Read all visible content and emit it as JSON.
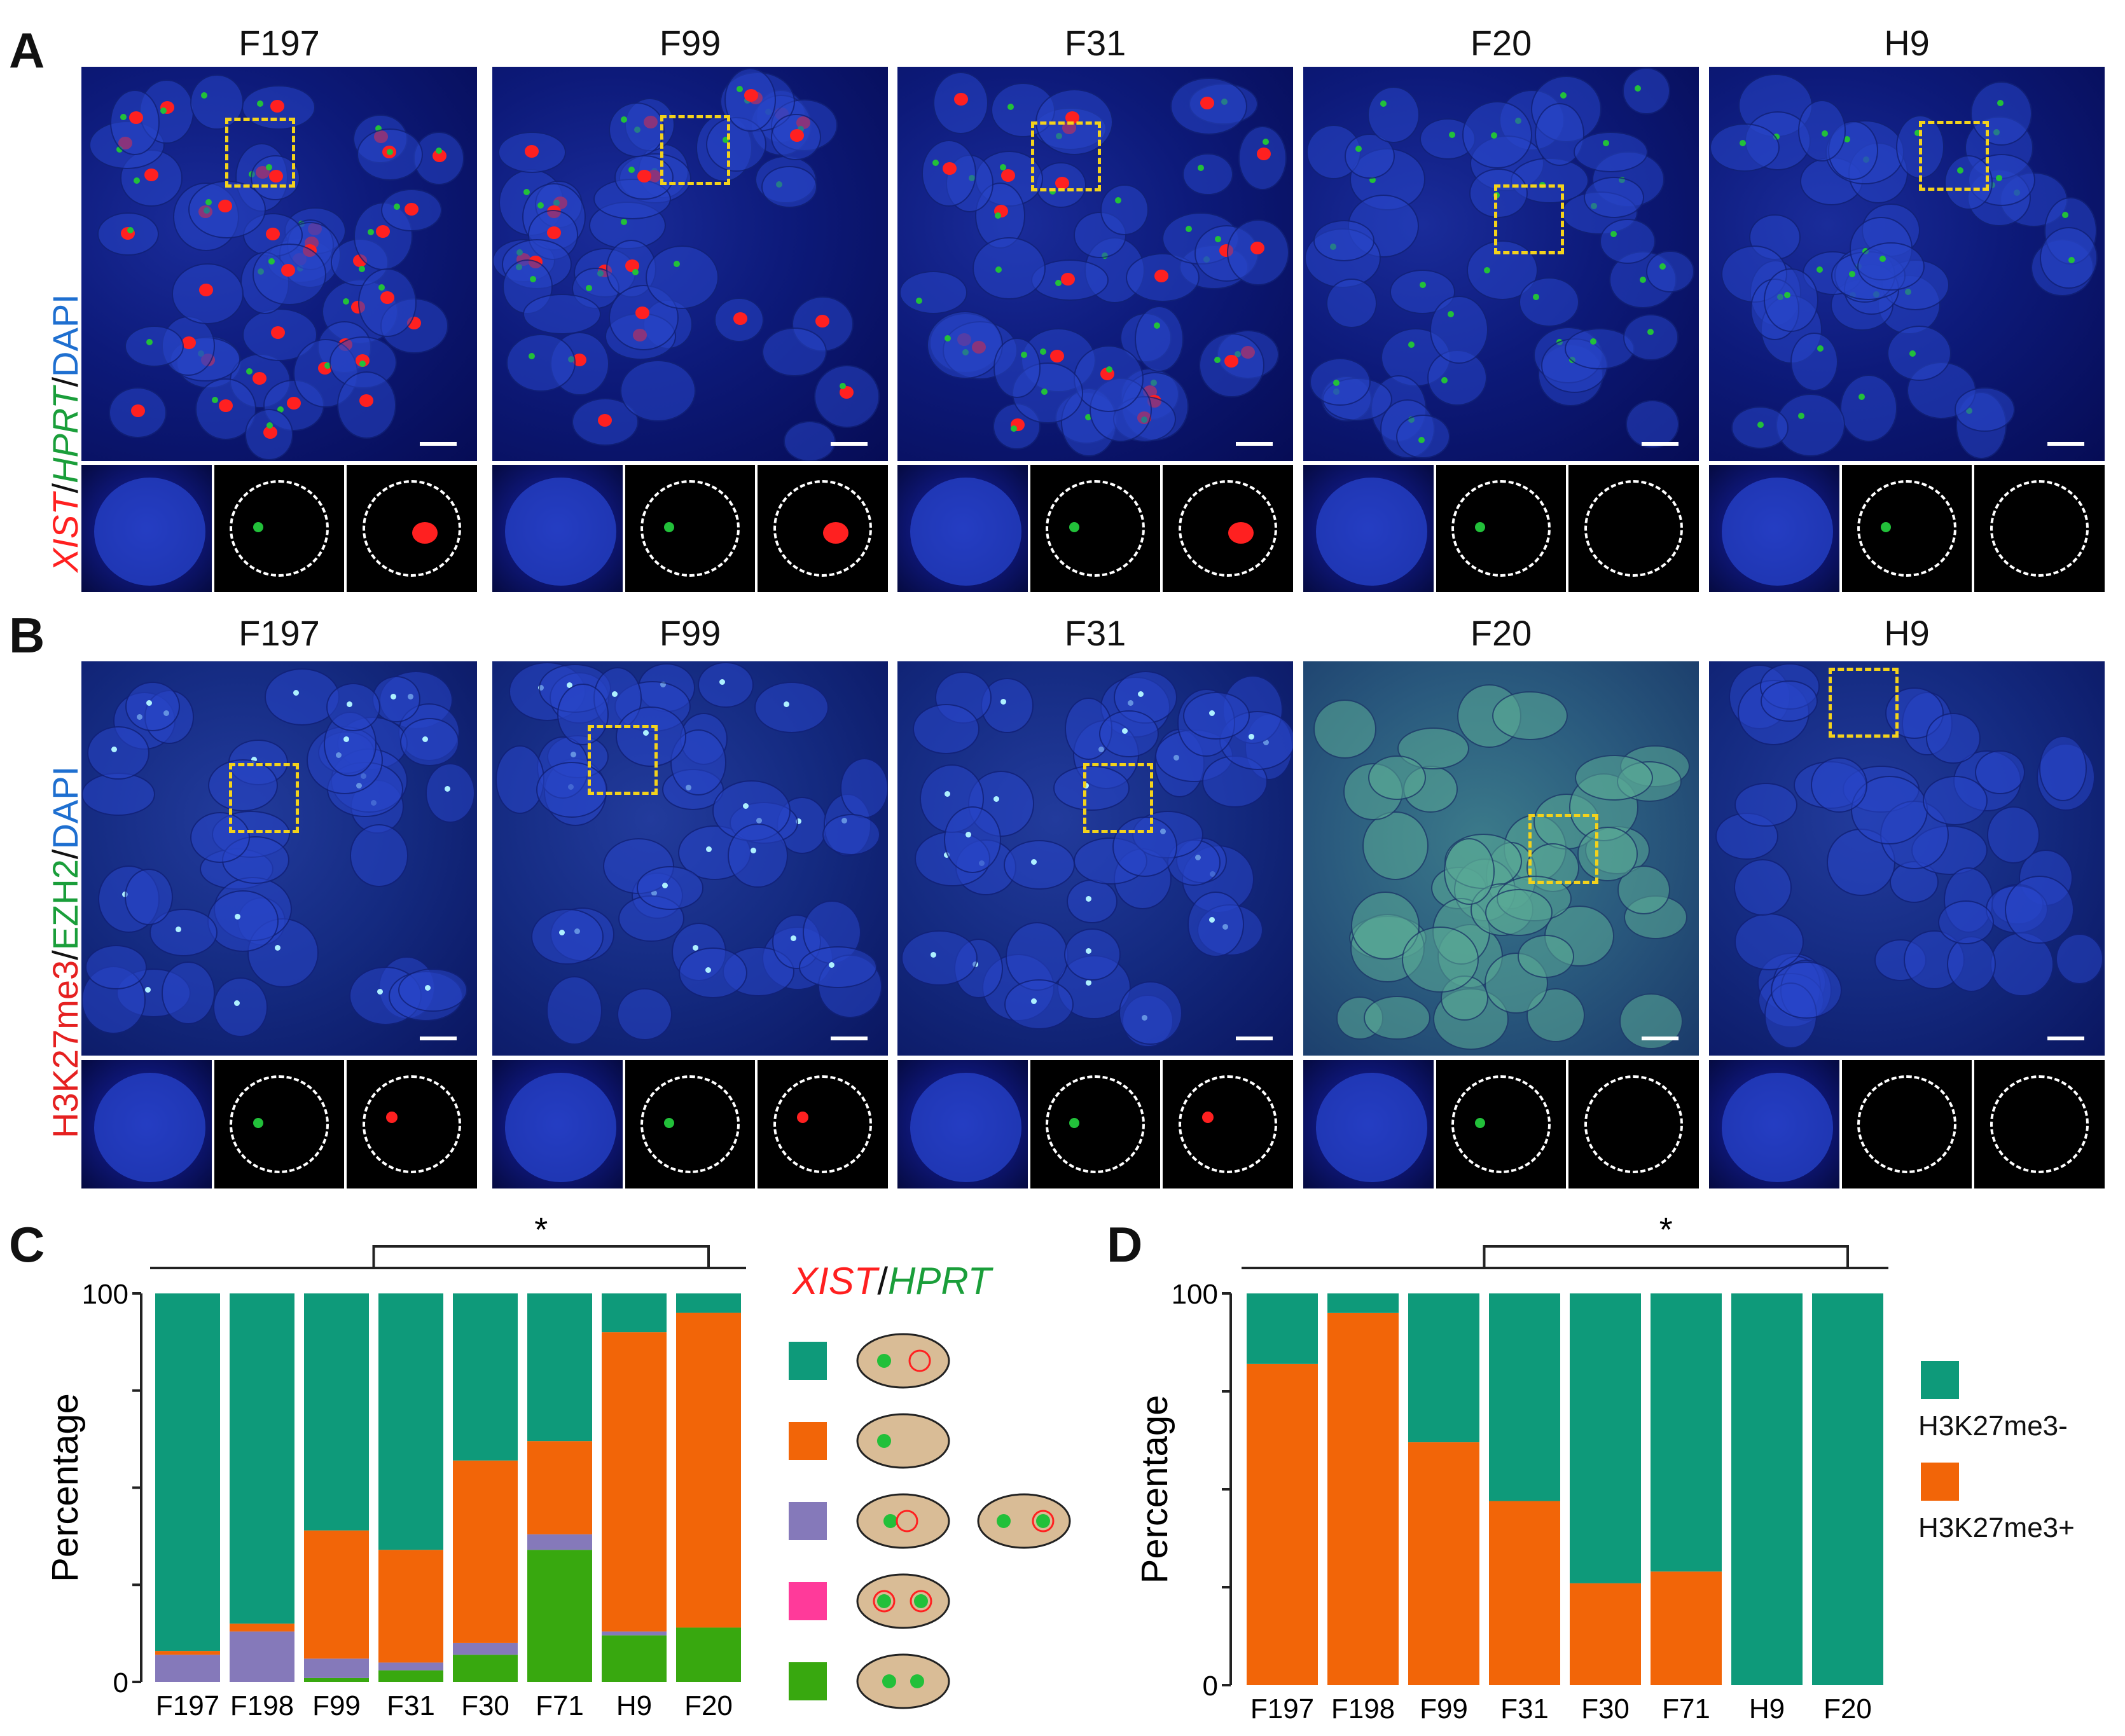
{
  "panels": {
    "a": {
      "letter": "A",
      "stain": {
        "xist": "XIST",
        "sep1": "/",
        "hprt": "HPRT",
        "sep2": "/",
        "dapi": "DAPI"
      },
      "titles": [
        "F197",
        "F99",
        "F31",
        "F20",
        "H9"
      ]
    },
    "b": {
      "letter": "B",
      "stain": {
        "h3k": "H3K27me3",
        "sep1": "/",
        "ezh2": "EZH2",
        "sep2": "/",
        "dapi": "DAPI"
      },
      "titles": [
        "F197",
        "F99",
        "F31",
        "F20",
        "H9"
      ]
    },
    "c": {
      "letter": "C"
    },
    "d": {
      "letter": "D"
    }
  },
  "colors": {
    "teal": "#0e9a7a",
    "orange": "#f26508",
    "purple": "#8579ba",
    "pink": "#ff3a9a",
    "green": "#38a80f",
    "nucleus": "#d9bc96",
    "xist_red": "#ff2020",
    "hprt_green": "#22c03a",
    "dapi_blue": "#1e90ff",
    "roi_yellow": "#f3d21c"
  },
  "chart_data": [
    {
      "id": "C",
      "type": "bar",
      "stacked": true,
      "ylabel": "Percentage",
      "yticks": [
        "0",
        "100"
      ],
      "ylim": [
        0,
        100
      ],
      "categories": [
        "F197",
        "F198",
        "F99",
        "F31",
        "F30",
        "F71",
        "H9",
        "F20"
      ],
      "series": [
        {
          "name": "biallelic HPRT, no XIST",
          "color": "green",
          "values": [
            0,
            0,
            1,
            3,
            7,
            34,
            12,
            14
          ]
        },
        {
          "name": "pink",
          "color": "pink",
          "values": [
            0,
            0,
            0,
            0,
            0,
            0,
            0,
            0
          ]
        },
        {
          "name": "purple",
          "color": "purple",
          "values": [
            7,
            13,
            5,
            2,
            3,
            4,
            1,
            0
          ]
        },
        {
          "name": "orange",
          "color": "orange",
          "values": [
            1,
            2,
            33,
            29,
            47,
            24,
            77,
            81
          ]
        },
        {
          "name": "teal",
          "color": "teal",
          "values": [
            92,
            85,
            61,
            66,
            43,
            38,
            10,
            5
          ]
        }
      ],
      "significance": {
        "label": "*",
        "left_group_end": "F71",
        "right_group_start": "H9"
      },
      "legend_title": {
        "xist": "XIST",
        "sep": "/",
        "hprt": "HPRT"
      },
      "legend": [
        "teal",
        "orange",
        "purple",
        "pink",
        "green"
      ]
    },
    {
      "id": "D",
      "type": "bar",
      "stacked": true,
      "ylabel": "Percentage",
      "yticks": [
        "0",
        "100"
      ],
      "ylim": [
        0,
        100
      ],
      "categories": [
        "F197",
        "F198",
        "F99",
        "F31",
        "F30",
        "F71",
        "H9",
        "F20"
      ],
      "series": [
        {
          "name": "H3K27me3+",
          "color": "orange",
          "values": [
            82,
            95,
            62,
            47,
            26,
            29,
            0,
            0
          ]
        },
        {
          "name": "H3K27me3-",
          "color": "teal",
          "values": [
            18,
            5,
            38,
            53,
            74,
            71,
            100,
            100
          ]
        }
      ],
      "significance": {
        "label": "*",
        "left_group_end": "F71",
        "right_group_start": "H9"
      },
      "legend": [
        {
          "label": "H3K27me3-",
          "color": "teal"
        },
        {
          "label": "H3K27me3+",
          "color": "orange"
        }
      ]
    }
  ]
}
